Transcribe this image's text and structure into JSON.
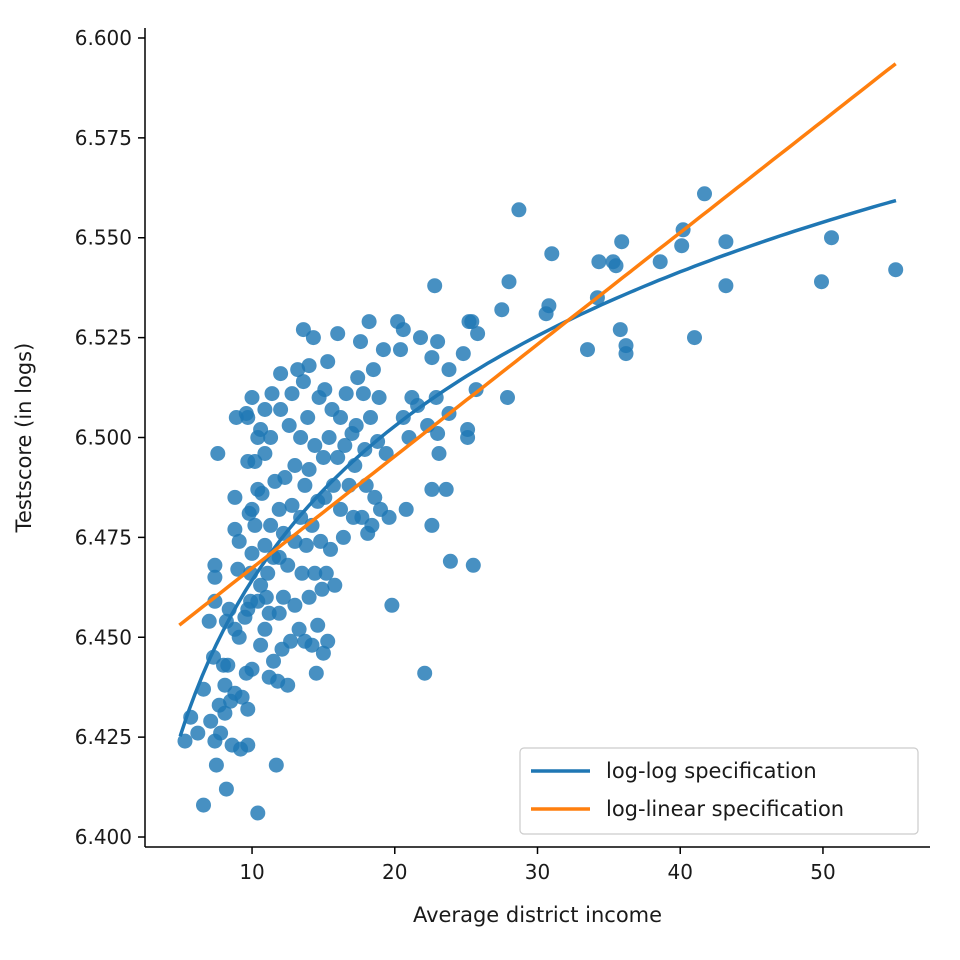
{
  "chart_data": {
    "type": "scatter",
    "title": "",
    "xlabel": "Average district income",
    "ylabel": "Testscore (in logs)",
    "xlim": [
      2.5,
      57.5
    ],
    "ylim": [
      6.3975,
      6.6025
    ],
    "x_ticks": [
      10,
      20,
      30,
      40,
      50
    ],
    "y_ticks": [
      6.4,
      6.425,
      6.45,
      6.475,
      6.5,
      6.525,
      6.55,
      6.575,
      6.6
    ],
    "y_tick_labels": [
      "6.400",
      "6.425",
      "6.450",
      "6.475",
      "6.500",
      "6.525",
      "6.550",
      "6.575",
      "6.600"
    ],
    "grid": false,
    "legend_position": "lower-right",
    "colors": {
      "scatter": "#1f77b4",
      "log_log": "#1f77b4",
      "log_linear": "#ff7f0e"
    },
    "series": [
      {
        "type": "scatter",
        "points": [
          [
            5.3,
            6.424
          ],
          [
            5.7,
            6.43
          ],
          [
            6.2,
            6.426
          ],
          [
            6.6,
            6.408
          ],
          [
            6.6,
            6.437
          ],
          [
            7.0,
            6.454
          ],
          [
            7.1,
            6.429
          ],
          [
            7.3,
            6.445
          ],
          [
            7.4,
            6.424
          ],
          [
            7.4,
            6.459
          ],
          [
            7.4,
            6.465
          ],
          [
            7.4,
            6.468
          ],
          [
            7.5,
            6.418
          ],
          [
            7.6,
            6.496
          ],
          [
            7.7,
            6.433
          ],
          [
            7.8,
            6.426
          ],
          [
            8.0,
            6.443
          ],
          [
            8.1,
            6.431
          ],
          [
            8.1,
            6.438
          ],
          [
            8.2,
            6.412
          ],
          [
            8.2,
            6.454
          ],
          [
            8.3,
            6.443
          ],
          [
            8.4,
            6.457
          ],
          [
            8.5,
            6.434
          ],
          [
            8.6,
            6.423
          ],
          [
            8.8,
            6.436
          ],
          [
            8.8,
            6.452
          ],
          [
            8.8,
            6.477
          ],
          [
            8.8,
            6.485
          ],
          [
            8.9,
            6.505
          ],
          [
            9.0,
            6.467
          ],
          [
            9.1,
            6.45
          ],
          [
            9.1,
            6.474
          ],
          [
            9.2,
            6.422
          ],
          [
            9.3,
            6.435
          ],
          [
            9.5,
            6.455
          ],
          [
            9.6,
            6.441
          ],
          [
            9.6,
            6.506
          ],
          [
            9.7,
            6.423
          ],
          [
            9.7,
            6.432
          ],
          [
            9.7,
            6.457
          ],
          [
            9.7,
            6.494
          ],
          [
            9.7,
            6.505
          ],
          [
            9.8,
            6.481
          ],
          [
            9.9,
            6.459
          ],
          [
            9.9,
            6.466
          ],
          [
            10.0,
            6.442
          ],
          [
            10.0,
            6.471
          ],
          [
            10.0,
            6.482
          ],
          [
            10.0,
            6.51
          ],
          [
            10.2,
            6.478
          ],
          [
            10.2,
            6.494
          ],
          [
            10.4,
            6.406
          ],
          [
            10.4,
            6.459
          ],
          [
            10.4,
            6.487
          ],
          [
            10.4,
            6.5
          ],
          [
            10.6,
            6.448
          ],
          [
            10.6,
            6.463
          ],
          [
            10.6,
            6.502
          ],
          [
            10.7,
            6.486
          ],
          [
            10.9,
            6.452
          ],
          [
            10.9,
            6.473
          ],
          [
            10.9,
            6.496
          ],
          [
            10.9,
            6.507
          ],
          [
            11.0,
            6.46
          ],
          [
            11.1,
            6.466
          ],
          [
            11.2,
            6.44
          ],
          [
            11.2,
            6.456
          ],
          [
            11.3,
            6.478
          ],
          [
            11.3,
            6.5
          ],
          [
            11.4,
            6.511
          ],
          [
            11.5,
            6.444
          ],
          [
            11.5,
            6.47
          ],
          [
            11.6,
            6.489
          ],
          [
            11.7,
            6.418
          ],
          [
            11.8,
            6.439
          ],
          [
            11.9,
            6.456
          ],
          [
            11.9,
            6.47
          ],
          [
            11.9,
            6.482
          ],
          [
            12.0,
            6.507
          ],
          [
            12.0,
            6.516
          ],
          [
            12.1,
            6.447
          ],
          [
            12.2,
            6.46
          ],
          [
            12.2,
            6.476
          ],
          [
            12.3,
            6.49
          ],
          [
            12.5,
            6.438
          ],
          [
            12.5,
            6.468
          ],
          [
            12.6,
            6.503
          ],
          [
            12.7,
            6.449
          ],
          [
            12.8,
            6.483
          ],
          [
            12.8,
            6.511
          ],
          [
            13.0,
            6.458
          ],
          [
            13.0,
            6.474
          ],
          [
            13.0,
            6.493
          ],
          [
            13.2,
            6.517
          ],
          [
            13.3,
            6.452
          ],
          [
            13.4,
            6.48
          ],
          [
            13.4,
            6.5
          ],
          [
            13.5,
            6.466
          ],
          [
            13.6,
            6.527
          ],
          [
            13.6,
            6.514
          ],
          [
            13.7,
            6.449
          ],
          [
            13.7,
            6.488
          ],
          [
            13.8,
            6.473
          ],
          [
            13.9,
            6.505
          ],
          [
            14.0,
            6.46
          ],
          [
            14.0,
            6.492
          ],
          [
            14.0,
            6.518
          ],
          [
            14.2,
            6.448
          ],
          [
            14.2,
            6.478
          ],
          [
            14.3,
            6.525
          ],
          [
            14.4,
            6.466
          ],
          [
            14.4,
            6.498
          ],
          [
            14.5,
            6.441
          ],
          [
            14.6,
            6.453
          ],
          [
            14.6,
            6.484
          ],
          [
            14.7,
            6.51
          ],
          [
            14.8,
            6.474
          ],
          [
            14.9,
            6.462
          ],
          [
            15.0,
            6.446
          ],
          [
            15.0,
            6.495
          ],
          [
            15.1,
            6.512
          ],
          [
            15.1,
            6.485
          ],
          [
            15.2,
            6.466
          ],
          [
            15.3,
            6.519
          ],
          [
            15.3,
            6.449
          ],
          [
            15.4,
            6.5
          ],
          [
            15.5,
            6.472
          ],
          [
            15.6,
            6.507
          ],
          [
            15.7,
            6.488
          ],
          [
            15.8,
            6.463
          ],
          [
            16.0,
            6.526
          ],
          [
            16.0,
            6.495
          ],
          [
            16.2,
            6.505
          ],
          [
            16.2,
            6.482
          ],
          [
            16.4,
            6.475
          ],
          [
            16.5,
            6.498
          ],
          [
            16.6,
            6.511
          ],
          [
            16.8,
            6.488
          ],
          [
            17.0,
            6.501
          ],
          [
            17.1,
            6.48
          ],
          [
            17.2,
            6.493
          ],
          [
            17.3,
            6.503
          ],
          [
            17.4,
            6.515
          ],
          [
            17.6,
            6.524
          ],
          [
            17.7,
            6.48
          ],
          [
            17.8,
            6.511
          ],
          [
            17.9,
            6.497
          ],
          [
            18.0,
            6.488
          ],
          [
            18.1,
            6.476
          ],
          [
            18.2,
            6.529
          ],
          [
            18.3,
            6.505
          ],
          [
            18.4,
            6.478
          ],
          [
            18.5,
            6.517
          ],
          [
            18.6,
            6.485
          ],
          [
            18.8,
            6.499
          ],
          [
            18.9,
            6.51
          ],
          [
            19.0,
            6.482
          ],
          [
            19.2,
            6.522
          ],
          [
            19.4,
            6.496
          ],
          [
            19.6,
            6.48
          ],
          [
            19.8,
            6.458
          ],
          [
            20.2,
            6.529
          ],
          [
            20.4,
            6.522
          ],
          [
            20.6,
            6.527
          ],
          [
            20.6,
            6.505
          ],
          [
            20.8,
            6.482
          ],
          [
            21.0,
            6.5
          ],
          [
            21.2,
            6.51
          ],
          [
            21.6,
            6.508
          ],
          [
            21.8,
            6.525
          ],
          [
            22.1,
            6.441
          ],
          [
            22.3,
            6.503
          ],
          [
            22.6,
            6.52
          ],
          [
            22.6,
            6.478
          ],
          [
            22.6,
            6.487
          ],
          [
            22.8,
            6.538
          ],
          [
            22.9,
            6.51
          ],
          [
            23.0,
            6.501
          ],
          [
            23.0,
            6.524
          ],
          [
            23.1,
            6.496
          ],
          [
            23.6,
            6.487
          ],
          [
            23.8,
            6.506
          ],
          [
            23.8,
            6.517
          ],
          [
            23.9,
            6.469
          ],
          [
            24.8,
            6.521
          ],
          [
            25.1,
            6.5
          ],
          [
            25.1,
            6.502
          ],
          [
            25.2,
            6.529
          ],
          [
            25.4,
            6.529
          ],
          [
            25.5,
            6.468
          ],
          [
            25.7,
            6.512
          ],
          [
            25.8,
            6.526
          ],
          [
            27.5,
            6.532
          ],
          [
            27.9,
            6.51
          ],
          [
            28.0,
            6.539
          ],
          [
            28.7,
            6.557
          ],
          [
            30.6,
            6.531
          ],
          [
            30.8,
            6.533
          ],
          [
            31.0,
            6.546
          ],
          [
            33.5,
            6.522
          ],
          [
            34.2,
            6.535
          ],
          [
            34.3,
            6.544
          ],
          [
            35.3,
            6.544
          ],
          [
            35.5,
            6.543
          ],
          [
            35.8,
            6.527
          ],
          [
            35.9,
            6.549
          ],
          [
            36.2,
            6.523
          ],
          [
            36.2,
            6.521
          ],
          [
            38.6,
            6.544
          ],
          [
            40.1,
            6.548
          ],
          [
            40.2,
            6.552
          ],
          [
            41.0,
            6.525
          ],
          [
            41.7,
            6.561
          ],
          [
            43.2,
            6.549
          ],
          [
            43.2,
            6.538
          ],
          [
            49.9,
            6.539
          ],
          [
            50.6,
            6.55
          ],
          [
            55.1,
            6.542
          ]
        ]
      },
      {
        "type": "line",
        "name": "log-log specification",
        "model": "log",
        "a": 6.336,
        "b": 0.0557,
        "x_range": [
          5,
          55
        ]
      },
      {
        "type": "line",
        "name": "log-linear specification",
        "model": "linear",
        "a": 6.4393,
        "b": 0.0028,
        "x_range": [
          5,
          55
        ]
      }
    ]
  }
}
